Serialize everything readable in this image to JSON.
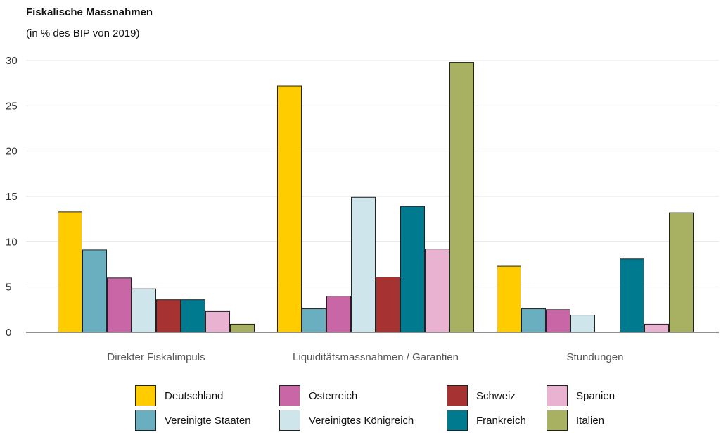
{
  "title": "Fiskalische Massnahmen",
  "subtitle": "(in % des BIP von 2019)",
  "chart_data": {
    "type": "bar",
    "title": "Fiskalische Massnahmen",
    "subtitle": "(in % des BIP von 2019)",
    "xlabel": "",
    "ylabel": "",
    "ylim": [
      0,
      30
    ],
    "yticks": [
      0,
      5,
      10,
      15,
      20,
      25,
      30
    ],
    "grid": true,
    "legend_position": "bottom",
    "categories": [
      "Direkter Fiskalimpuls",
      "Liquiditätsmassnahmen / Garantien",
      "Stundungen"
    ],
    "series": [
      {
        "name": "Deutschland",
        "color": "#ffcc00",
        "values": [
          13.3,
          27.2,
          7.3
        ]
      },
      {
        "name": "Vereinigte Staaten",
        "color": "#6aafc0",
        "values": [
          9.1,
          2.6,
          2.6
        ]
      },
      {
        "name": "Österreich",
        "color": "#c866a6",
        "values": [
          6.0,
          4.0,
          2.5
        ]
      },
      {
        "name": "Vereinigtes Königreich",
        "color": "#cde5eb",
        "values": [
          4.8,
          14.9,
          1.9
        ]
      },
      {
        "name": "Schweiz",
        "color": "#a63232",
        "values": [
          3.6,
          6.1,
          0
        ]
      },
      {
        "name": "Frankreich",
        "color": "#007a8f",
        "values": [
          3.6,
          13.9,
          8.1
        ]
      },
      {
        "name": "Spanien",
        "color": "#e8b2d0",
        "values": [
          2.3,
          9.2,
          0.9
        ]
      },
      {
        "name": "Italien",
        "color": "#a8b062",
        "values": [
          0.9,
          29.8,
          13.2
        ]
      }
    ]
  }
}
